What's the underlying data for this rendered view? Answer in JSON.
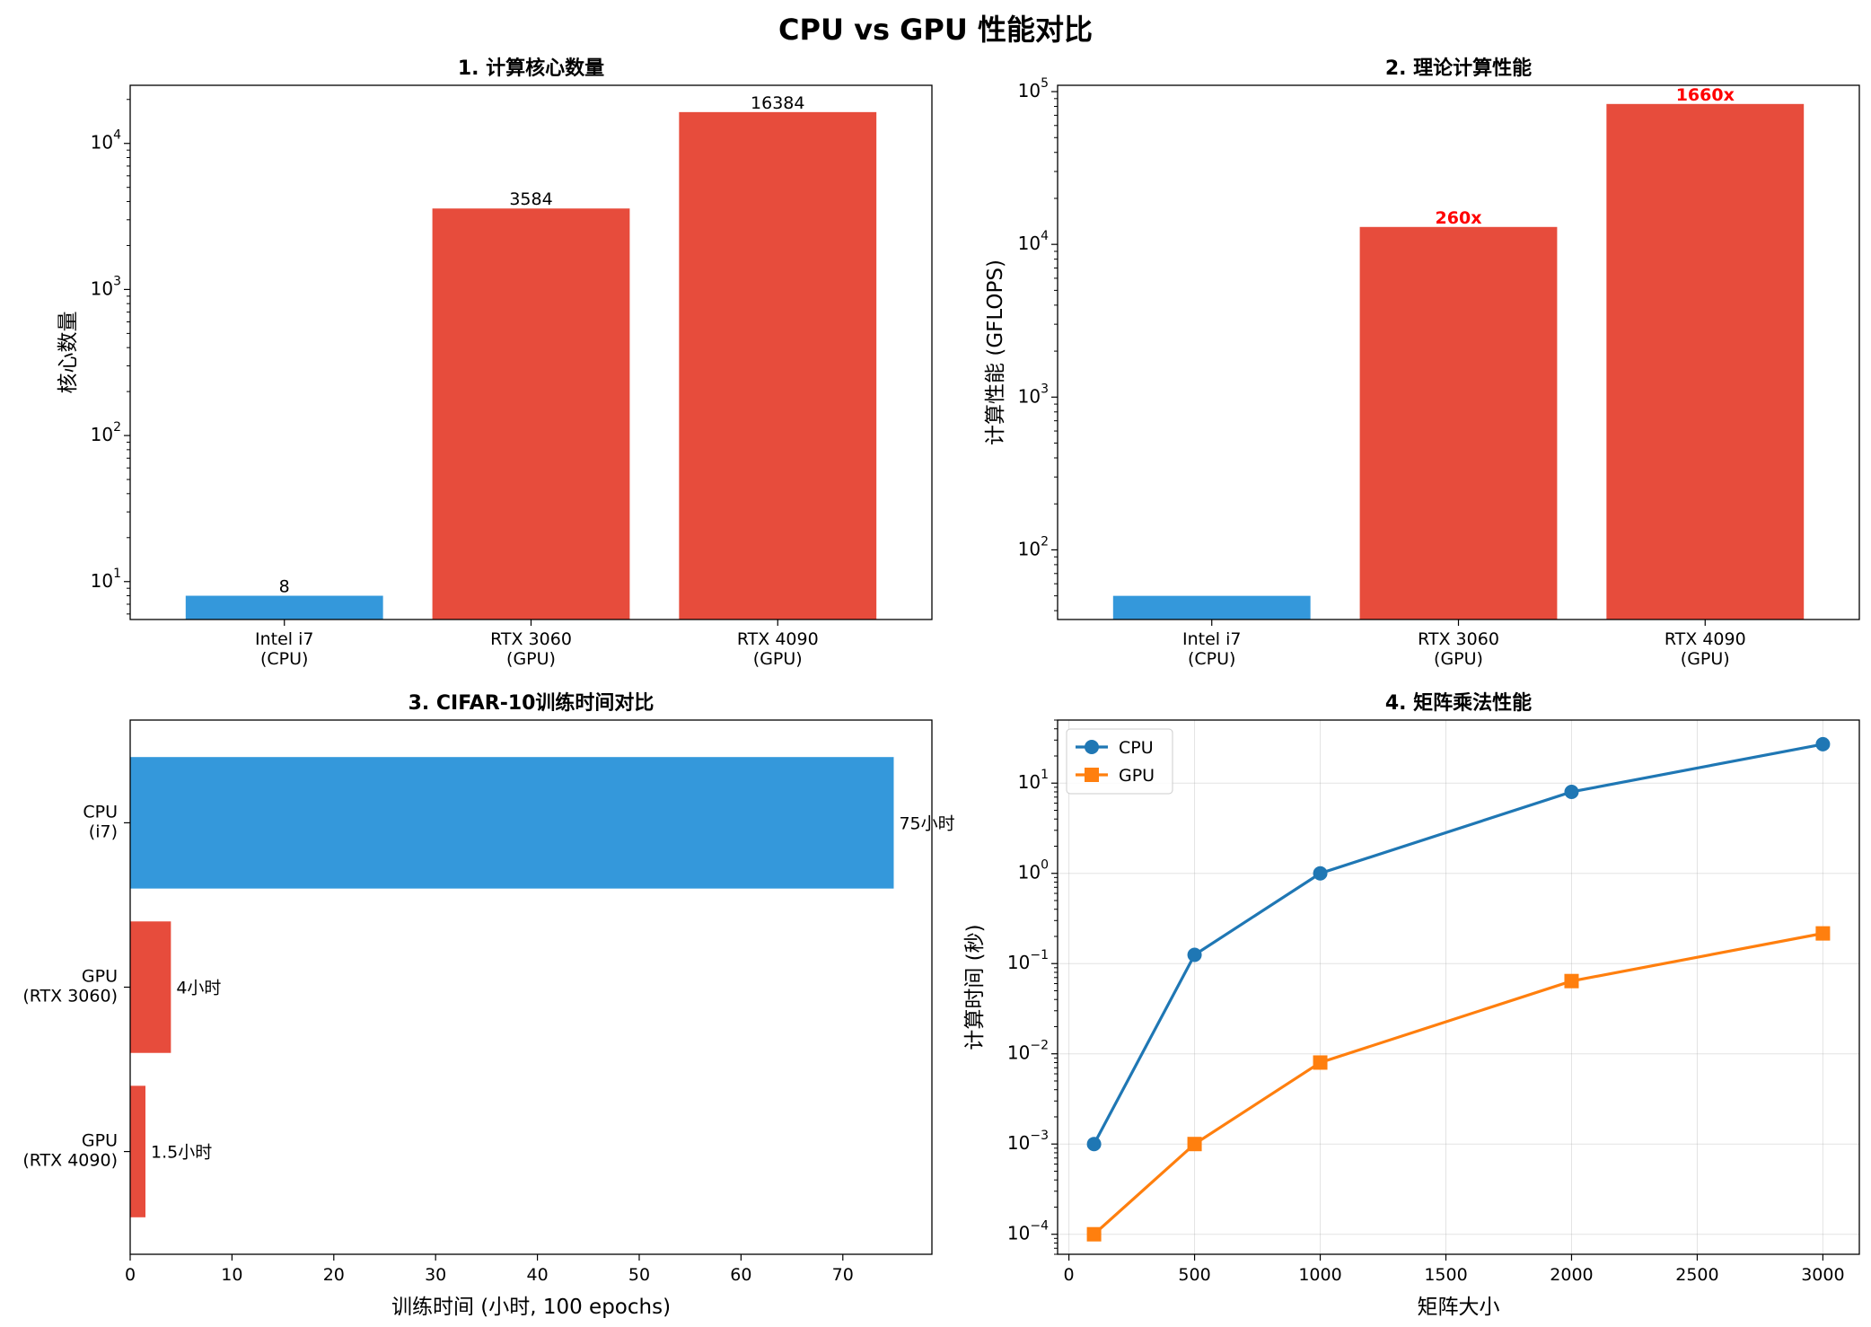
{
  "suptitle": "CPU vs GPU 性能对比",
  "colors": {
    "cpu": "#3498db",
    "gpu": "#e74c3c",
    "line_cpu": "#1f77b4",
    "line_gpu": "#ff7f0e",
    "accent_red": "#ff0000"
  },
  "chart_data": [
    {
      "type": "bar",
      "title": "1. 计算核心数量",
      "ylabel": "核心数量",
      "xlabel": "",
      "yscale": "log",
      "ylim": [
        5.5,
        25000
      ],
      "yticks": [
        {
          "v": 10,
          "exp": "1"
        },
        {
          "v": 100,
          "exp": "2"
        },
        {
          "v": 1000,
          "exp": "3"
        },
        {
          "v": 10000,
          "exp": "4"
        }
      ],
      "categories": [
        [
          "Intel i7",
          "(CPU)"
        ],
        [
          "RTX 3060",
          "(GPU)"
        ],
        [
          "RTX 4090",
          "(GPU)"
        ]
      ],
      "values": [
        8,
        3584,
        16384
      ],
      "labels": [
        "8",
        "3584",
        "16384"
      ]
    },
    {
      "type": "bar",
      "title": "2. 理论计算性能",
      "ylabel": "计算性能 (GFLOPS)",
      "xlabel": "",
      "yscale": "log",
      "ylim": [
        35,
        110000
      ],
      "yticks": [
        {
          "v": 100,
          "exp": "2"
        },
        {
          "v": 1000,
          "exp": "3"
        },
        {
          "v": 10000,
          "exp": "4"
        },
        {
          "v": 100000,
          "exp": "5"
        }
      ],
      "categories": [
        [
          "Intel i7",
          "(CPU)"
        ],
        [
          "RTX 3060",
          "(GPU)"
        ],
        [
          "RTX 4090",
          "(GPU)"
        ]
      ],
      "values": [
        50,
        13000,
        83000
      ],
      "labels": [
        "",
        "260x",
        "1660x"
      ]
    },
    {
      "type": "barh",
      "title": "3. CIFAR-10训练时间对比",
      "xlabel": "训练时间 (小时, 100 epochs)",
      "ylabel": "",
      "xlim": [
        0,
        78.75
      ],
      "xticks": [
        0,
        10,
        20,
        30,
        40,
        50,
        60,
        70
      ],
      "categories": [
        [
          "CPU",
          "(i7)"
        ],
        [
          "GPU",
          "(RTX 3060)"
        ],
        [
          "GPU",
          "(RTX 4090)"
        ]
      ],
      "values": [
        75,
        4,
        1.5
      ],
      "labels": [
        "75小时",
        "4小时",
        "1.5小时"
      ]
    },
    {
      "type": "line",
      "title": "4. 矩阵乘法性能",
      "xlabel": "矩阵大小",
      "ylabel": "计算时间 (秒)",
      "yscale": "log",
      "xlim": [
        -45,
        3145
      ],
      "ylim": [
        6e-05,
        50
      ],
      "xticks": [
        0,
        500,
        1000,
        1500,
        2000,
        2500,
        3000
      ],
      "yticks": [
        {
          "v": 0.0001,
          "exp": "−4"
        },
        {
          "v": 0.001,
          "exp": "−3"
        },
        {
          "v": 0.01,
          "exp": "−2"
        },
        {
          "v": 0.1,
          "exp": "−1"
        },
        {
          "v": 1,
          "exp": "0"
        },
        {
          "v": 10,
          "exp": "1"
        }
      ],
      "grid": true,
      "legend_position": "upper-left",
      "x": [
        100,
        500,
        1000,
        2000,
        3000
      ],
      "series": [
        {
          "name": "CPU",
          "marker": "circle",
          "values": [
            0.001,
            0.125,
            1,
            8,
            27
          ]
        },
        {
          "name": "GPU",
          "marker": "square",
          "values": [
            0.0001,
            0.001,
            0.008,
            0.064,
            0.216
          ]
        }
      ]
    }
  ]
}
